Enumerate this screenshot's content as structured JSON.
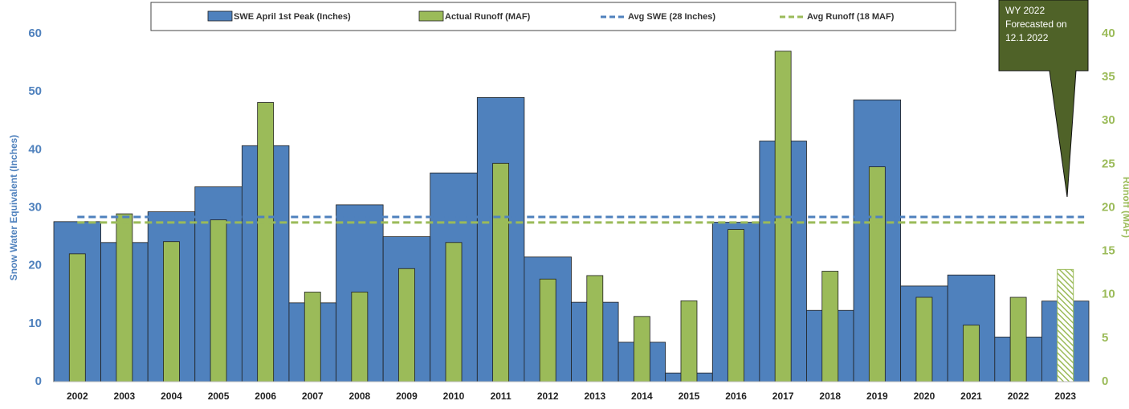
{
  "chart_data": {
    "type": "bar",
    "categories": [
      "2002",
      "2003",
      "2004",
      "2005",
      "2006",
      "2007",
      "2008",
      "2009",
      "2010",
      "2011",
      "2012",
      "2013",
      "2014",
      "2015",
      "2016",
      "2017",
      "2018",
      "2019",
      "2020",
      "2021",
      "2022",
      "2023"
    ],
    "series": [
      {
        "name": "SWE April 1st Peak (Inches)",
        "color": "#4f81bd",
        "axis": "y",
        "values": [
          27.6,
          24,
          29.3,
          33.6,
          40.7,
          13.6,
          30.5,
          25,
          36,
          49,
          21.5,
          13.7,
          6.8,
          1.5,
          27.5,
          41.5,
          12.3,
          48.6,
          16.5,
          18.4,
          7.7,
          13.9
        ]
      },
      {
        "name": "Actual Runoff (MAF)",
        "color": "#9bbb59",
        "axis": "y2",
        "values": [
          14.7,
          19.3,
          16.1,
          18.6,
          32.1,
          10.3,
          10.3,
          13,
          16,
          25.1,
          11.8,
          12.2,
          7.5,
          9.3,
          17.5,
          38,
          12.7,
          24.7,
          9.7,
          6.5,
          9.7,
          12.9
        ]
      }
    ],
    "hatched_categories": [
      "2023"
    ],
    "reference_lines": [
      {
        "name": "Avg SWE (28 Inches)",
        "color": "#4f81bd",
        "axis": "y",
        "value": 28.4
      },
      {
        "name": "Avg Runoff (18 MAF)",
        "color": "#9bbb59",
        "axis": "y2",
        "value": 18.3
      }
    ],
    "ylabel": "Snow Water Equivalent (Inches)",
    "y2label": "Runoff (MAF)",
    "ylim": [
      0,
      60
    ],
    "yticks": [
      0,
      10,
      20,
      30,
      40,
      50,
      60
    ],
    "y2lim": [
      0,
      40
    ],
    "y2ticks": [
      0,
      5,
      10,
      15,
      20,
      25,
      30,
      35,
      40
    ],
    "annotation": {
      "lines": [
        "WY 2022",
        "Forecasted on",
        "12.1.2022"
      ],
      "color": "#4f6228"
    }
  }
}
